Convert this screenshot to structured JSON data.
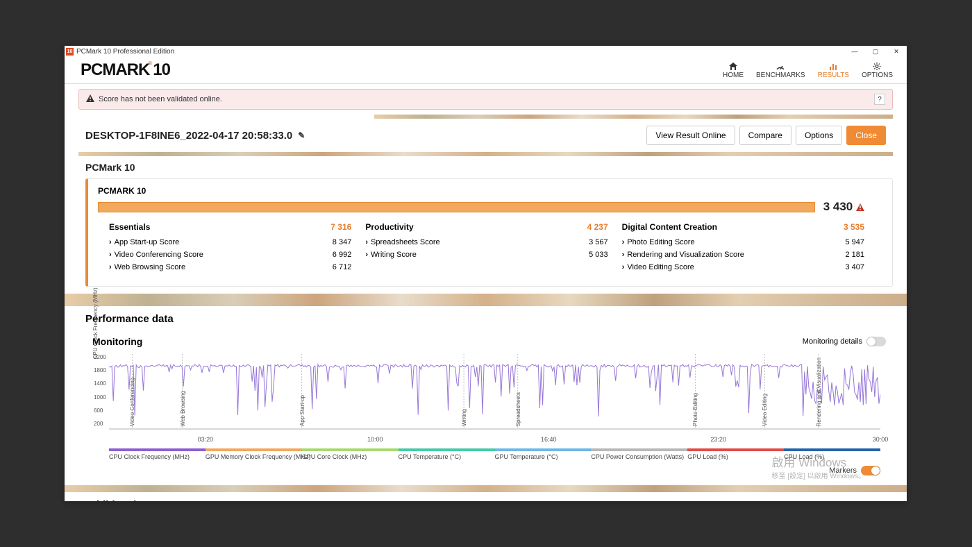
{
  "window": {
    "title": "PCMark 10 Professional Edition",
    "app_icon_text": "10"
  },
  "logo": {
    "pc": "PC",
    "mark": "MARK",
    "ten": "10",
    "reg": "®"
  },
  "nav": {
    "home": "HOME",
    "benchmarks": "BENCHMARKS",
    "results": "RESULTS",
    "options": "OPTIONS"
  },
  "warning": {
    "text": "Score has not been validated online.",
    "help": "?"
  },
  "result": {
    "name": "DESKTOP-1F8INE6_2022-04-17 20:58:33.0",
    "buttons": {
      "view_online": "View Result Online",
      "compare": "Compare",
      "options": "Options",
      "close": "Close"
    }
  },
  "section": {
    "pcmark10": "PCMark 10",
    "performance": "Performance data",
    "monitoring": "Monitoring",
    "monitoring_details": "Monitoring details",
    "markers": "Markers",
    "additional": "Additional Outputs"
  },
  "score": {
    "card_title": "PCMARK 10",
    "overall": "3 430",
    "categories": [
      {
        "name": "Essentials",
        "value": "7 316",
        "subs": [
          {
            "label": "App Start-up Score",
            "value": "8 347"
          },
          {
            "label": "Video Conferencing Score",
            "value": "6 992"
          },
          {
            "label": "Web Browsing Score",
            "value": "6 712"
          }
        ]
      },
      {
        "name": "Productivity",
        "value": "4 237",
        "subs": [
          {
            "label": "Spreadsheets Score",
            "value": "3 567"
          },
          {
            "label": "Writing Score",
            "value": "5 033"
          }
        ]
      },
      {
        "name": "Digital Content Creation",
        "value": "3 535",
        "subs": [
          {
            "label": "Photo Editing Score",
            "value": "5 947"
          },
          {
            "label": "Rendering and Visualization Score",
            "value": "2 181"
          },
          {
            "label": "Video Editing Score",
            "value": "3 407"
          }
        ]
      }
    ]
  },
  "chart": {
    "type": "line",
    "ylabel": "CPU Clock Frequency (MHz)",
    "yticks": [
      "2200",
      "1800",
      "1400",
      "1000",
      "600",
      "200"
    ],
    "ylim": [
      0,
      2400
    ],
    "xticks": [
      {
        "pos": 0.125,
        "label": "03:20"
      },
      {
        "pos": 0.345,
        "label": "10:00"
      },
      {
        "pos": 0.57,
        "label": "16:40"
      },
      {
        "pos": 0.79,
        "label": "23:20"
      },
      {
        "pos": 1.0,
        "label": "30:00"
      }
    ],
    "phase_markers": [
      {
        "pos": 0.03,
        "label": "Video Conferencing"
      },
      {
        "pos": 0.095,
        "label": "Web Browsing"
      },
      {
        "pos": 0.25,
        "label": "App Start-up"
      },
      {
        "pos": 0.46,
        "label": "Writing"
      },
      {
        "pos": 0.53,
        "label": "Spreadsheets"
      },
      {
        "pos": 0.76,
        "label": "Photo Editing"
      },
      {
        "pos": 0.85,
        "label": "Video Editing"
      },
      {
        "pos": 0.92,
        "label": "Rendering and Visualization"
      }
    ],
    "line_color": "#9878d8",
    "grid_color": "#d0d0d0",
    "legend": [
      {
        "color": "#8a5fd3",
        "label": "CPU Clock Frequency (MHz)"
      },
      {
        "color": "#f0a95d",
        "label": "GPU Memory Clock Frequency (MHz)"
      },
      {
        "color": "#a7d86e",
        "label": "GPU Core Clock (MHz)"
      },
      {
        "color": "#48c9a7",
        "label": "CPU Temperature (°C)"
      },
      {
        "color": "#6db6e8",
        "label": "GPU Temperature (°C)"
      },
      {
        "color": "#b8b8b8",
        "label": "CPU Power Consumption (Watts)"
      },
      {
        "color": "#e24a4a",
        "label": "GPU Load (%)"
      },
      {
        "color": "#2563a8",
        "label": "CPU Load (%)"
      }
    ]
  },
  "watermark": {
    "line1": "啟用 Windows",
    "line2": "移至 [設定] 以啟用 Windows。"
  }
}
